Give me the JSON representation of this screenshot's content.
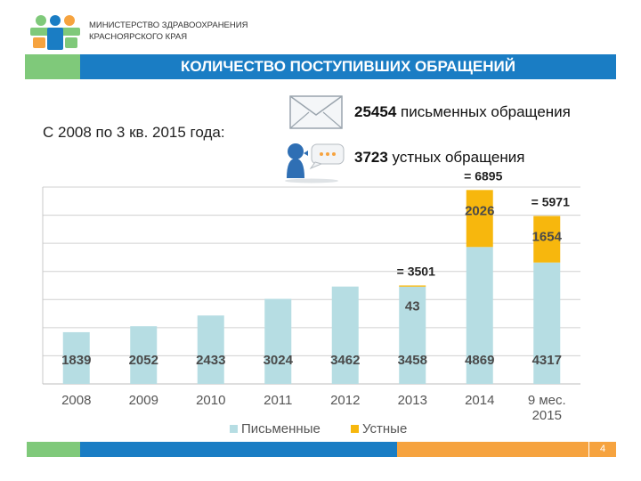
{
  "header": {
    "ministry_line1": "МИНИСТЕРСТВО ЗДРАВООХРАНЕНИЯ",
    "ministry_line2": "КРАСНОЯРСКОГО КРАЯ",
    "title": "КОЛИЧЕСТВО ПОСТУПИВШИХ ОБРАЩЕНИЙ"
  },
  "summary": {
    "period": "С 2008  по 3 кв. 2015 года:",
    "written_count": "25454",
    "written_label": " письменных обращения",
    "oral_count": "3723",
    "oral_label": " устных обращения"
  },
  "icons": {
    "logo": "ministry-logo",
    "letter": "envelope-icon",
    "speech": "speaking-person-icon"
  },
  "colors": {
    "written": "#b6dde3",
    "oral": "#f7b70d",
    "brand_blue": "#1a7dc4",
    "brand_green": "#7fc97a",
    "brand_orange": "#f6a33f"
  },
  "chart_data": {
    "type": "bar",
    "stacked": true,
    "categories": [
      [
        "2008"
      ],
      [
        "2009"
      ],
      [
        "2010"
      ],
      [
        "2011"
      ],
      [
        "2012"
      ],
      [
        "2013"
      ],
      [
        "2014"
      ],
      [
        "9 мес.",
        "2015"
      ]
    ],
    "series": [
      {
        "name": "Письменные",
        "values": [
          1839,
          2052,
          2433,
          3024,
          3462,
          3458,
          4869,
          4317
        ]
      },
      {
        "name": "Устные",
        "values": [
          0,
          0,
          0,
          0,
          0,
          43,
          2026,
          1654
        ]
      }
    ],
    "total_labels": [
      "",
      "",
      "",
      "",
      "",
      "= 3501",
      "= 6895",
      "= 5971"
    ],
    "ylim": [
      0,
      7000
    ],
    "grid": true,
    "legend": "bottom"
  },
  "footer": {
    "page_number": "4"
  }
}
